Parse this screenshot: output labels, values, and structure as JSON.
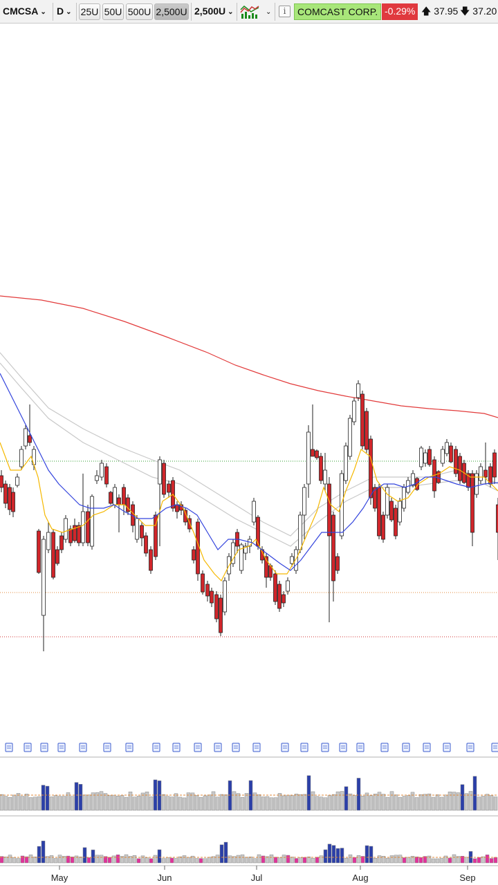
{
  "toolbar": {
    "symbol": "CMCSA",
    "interval": "D",
    "zoom_options": [
      "25U",
      "50U",
      "500U",
      "2,500U"
    ],
    "zoom_active": "2,500U",
    "range_select": "2,500U",
    "chart_type_icon": "line-chart-icon",
    "info_icon": "info-icon",
    "company": "COMCAST CORP.",
    "change": "-0.29%",
    "high_icon": "arrow-up-icon",
    "high": "37.95",
    "low_icon": "arrow-down-icon",
    "low": "37.20"
  },
  "colors": {
    "up": "#ffffff",
    "down": "#d0262b",
    "ma_fast": "#f5b800",
    "ma_mid": "#3344dd",
    "ma_slow": "#e23a3a",
    "band": "#c8c8c8",
    "vol_up": "#c8c8c8",
    "vol_hi": "#2b3fa8",
    "vol_pink": "#e0339a",
    "company_bg": "#a8e67a",
    "change_bg": "#e0393e"
  },
  "chart_data": {
    "type": "candlestick",
    "months": [
      "May",
      "Jun",
      "Jul",
      "Aug",
      "Sep"
    ]
  }
}
